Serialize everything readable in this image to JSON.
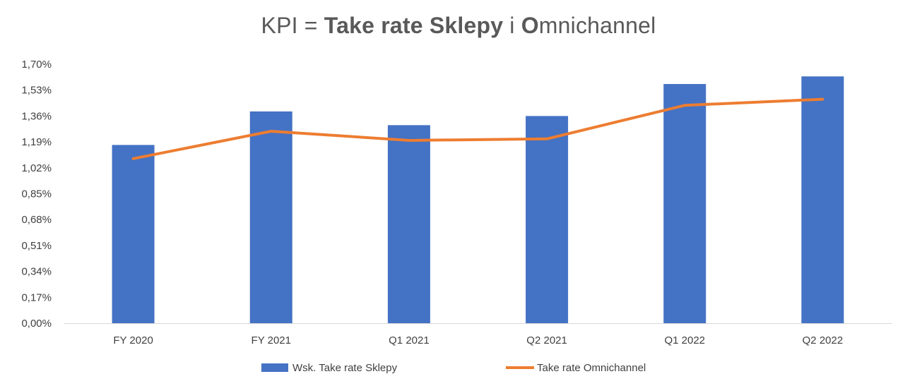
{
  "chart_data": {
    "type": "bar",
    "title_parts": [
      {
        "text": "KPI = ",
        "bold": false
      },
      {
        "text": "Take rate Sklepy",
        "bold": true
      },
      {
        "text": " i ",
        "bold": false
      },
      {
        "text": "O",
        "bold": true
      },
      {
        "text": "mnichannel",
        "bold": false
      }
    ],
    "categories": [
      "FY 2020",
      "FY 2021",
      "Q1 2021",
      "Q2 2021",
      "Q1 2022",
      "Q2 2022"
    ],
    "series": [
      {
        "name": "Wsk. Take rate Sklepy",
        "type": "bar",
        "color": "#4472C4",
        "values": [
          1.17,
          1.39,
          1.3,
          1.36,
          1.57,
          1.62
        ]
      },
      {
        "name": "Take rate Omnichannel",
        "type": "line",
        "color": "#ED7D31",
        "values": [
          1.08,
          1.26,
          1.2,
          1.21,
          1.43,
          1.47
        ]
      }
    ],
    "ylim": [
      0,
      1.7
    ],
    "yticks": [
      "0,00%",
      "0,17%",
      "0,34%",
      "0,51%",
      "0,68%",
      "0,85%",
      "1,02%",
      "1,19%",
      "1,36%",
      "1,53%",
      "1,70%"
    ],
    "grid": false,
    "legend_position": "bottom"
  }
}
